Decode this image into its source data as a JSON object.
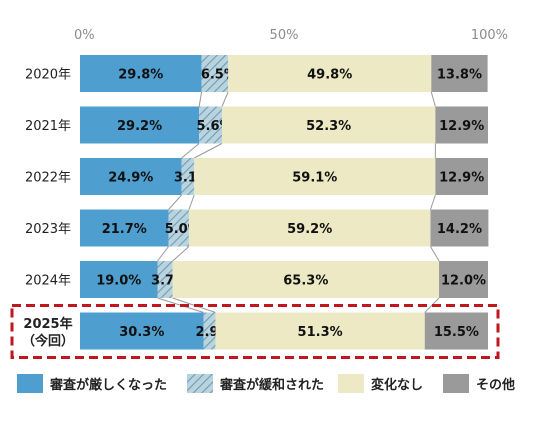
{
  "chart_data": {
    "type": "bar",
    "orientation": "horizontal",
    "stacked": "percent",
    "xlim": [
      0,
      100
    ],
    "x_ticks": [
      "0%",
      "50%",
      "100%"
    ],
    "x_tick_values": [
      0,
      50,
      100
    ],
    "grid": false,
    "legend_position": "bottom",
    "categories": [
      "2020年",
      "2021年",
      "2022年",
      "2023年",
      "2024年",
      "2025年（今回）"
    ],
    "category_lines": [
      [
        "2020年"
      ],
      [
        "2021年"
      ],
      [
        "2022年"
      ],
      [
        "2023年"
      ],
      [
        "2024年"
      ],
      [
        "2025年",
        "（今回）"
      ]
    ],
    "highlighted_category": "2025年（今回）",
    "series": [
      {
        "name": "審査が厳しくなった",
        "color": "#4e9fd0",
        "pattern": "solid",
        "values": [
          29.8,
          29.2,
          24.9,
          21.7,
          19.0,
          30.3
        ],
        "labels": [
          "29.8%",
          "29.2%",
          "24.9%",
          "21.7%",
          "19.0%",
          "30.3%"
        ]
      },
      {
        "name": "審査が緩和された",
        "color": "#8fb8cc",
        "pattern": "hatch",
        "values": [
          6.5,
          5.6,
          3.1,
          5.0,
          3.7,
          2.9
        ],
        "labels": [
          "6.5%",
          "5.6%",
          "3.1%",
          "5.0%",
          "3.7%",
          "2.9%"
        ]
      },
      {
        "name": "変化なし",
        "color": "#ece9c4",
        "pattern": "solid",
        "values": [
          49.8,
          52.3,
          59.1,
          59.2,
          65.3,
          51.3
        ],
        "labels": [
          "49.8%",
          "52.3%",
          "59.1%",
          "59.2%",
          "65.3%",
          "51.3%"
        ]
      },
      {
        "name": "その他",
        "color": "#9a9a9a",
        "pattern": "solid",
        "values": [
          13.8,
          12.9,
          12.9,
          14.2,
          12.0,
          15.5
        ],
        "labels": [
          "13.8%",
          "12.9%",
          "12.9%",
          "14.2%",
          "12.0%",
          "15.5%"
        ]
      }
    ],
    "highlight_color": "#c0161e"
  }
}
